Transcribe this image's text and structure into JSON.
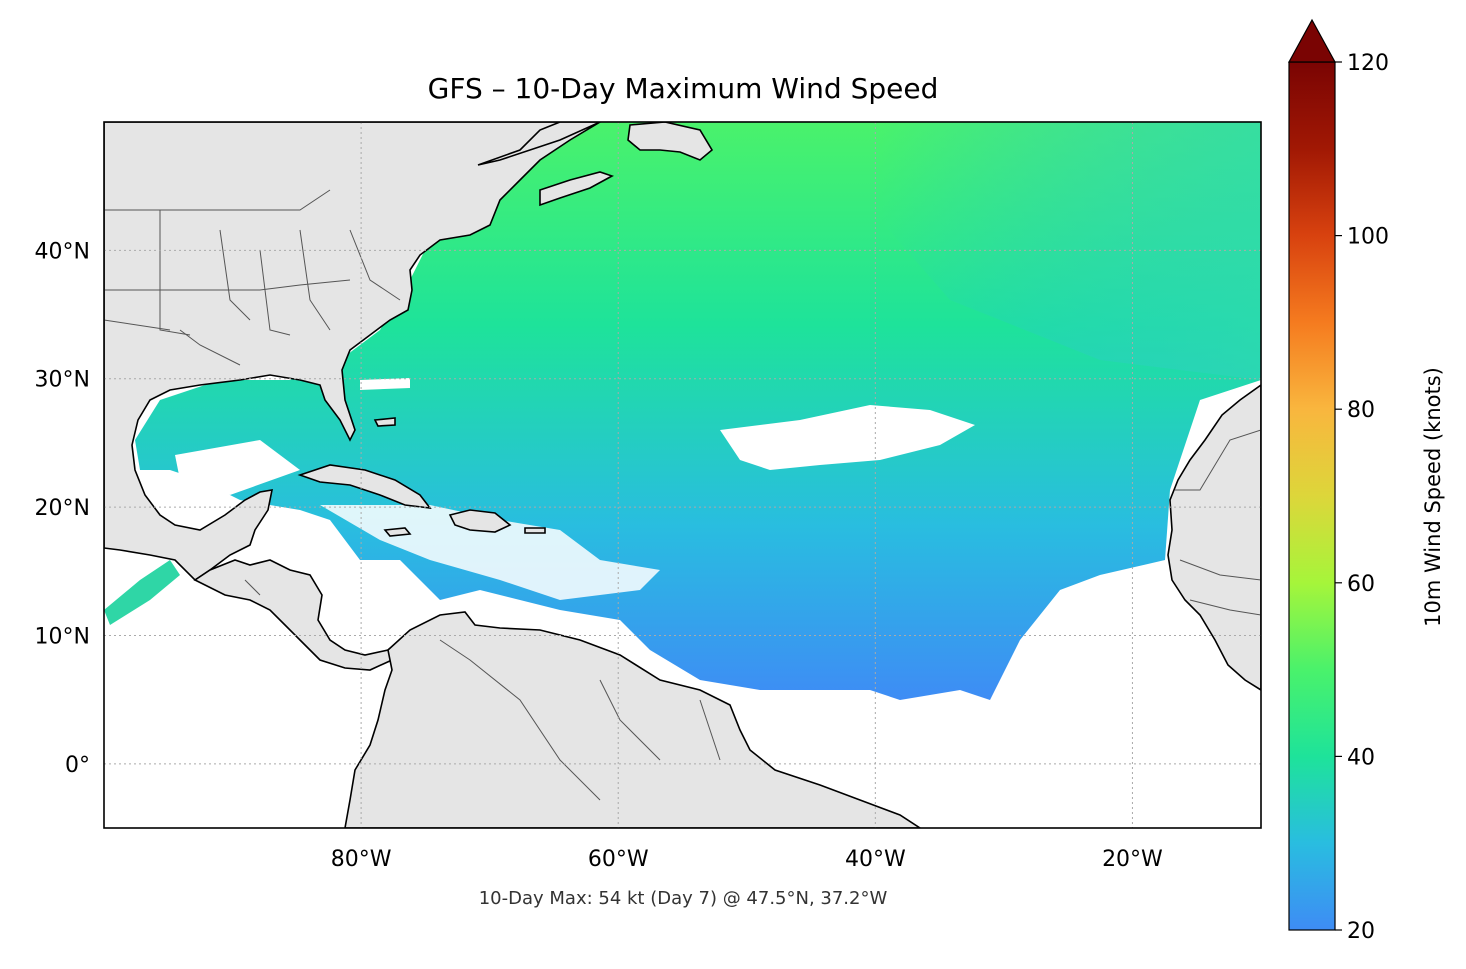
{
  "title": "GFS – 10-Day Maximum Wind Speed",
  "footnote": "10-Day Max: 54 kt (Day 7) @ 47.5°N, 37.2°W",
  "map": {
    "lon_range": [
      -100,
      -10
    ],
    "lat_range": [
      -5,
      50
    ],
    "x_ticks": [
      {
        "lon": -80,
        "label": "80°W"
      },
      {
        "lon": -60,
        "label": "60°W"
      },
      {
        "lon": -40,
        "label": "40°W"
      },
      {
        "lon": -20,
        "label": "20°W"
      }
    ],
    "y_ticks": [
      {
        "lat": 40,
        "label": "40°N"
      },
      {
        "lat": 30,
        "label": "30°N"
      },
      {
        "lat": 20,
        "label": "20°N"
      },
      {
        "lat": 10,
        "label": "10°N"
      },
      {
        "lat": 0,
        "label": "0°"
      }
    ],
    "gridlines": true,
    "land_color": "#e5e5e5",
    "ocean_color": "#ffffff"
  },
  "colorbar": {
    "label": "10m Wind Speed (knots)",
    "min": 20,
    "max": 120,
    "extend": "max",
    "ticks": [
      {
        "value": 20,
        "label": "20"
      },
      {
        "value": 40,
        "label": "40"
      },
      {
        "value": 60,
        "label": "60"
      },
      {
        "value": 80,
        "label": "80"
      },
      {
        "value": 100,
        "label": "100"
      },
      {
        "value": 120,
        "label": "120"
      }
    ],
    "colors": [
      "#3e8cf5",
      "#29bde0",
      "#1ee39a",
      "#4af26b",
      "#a6f53a",
      "#ddd63a",
      "#f9b63e",
      "#f57b1f",
      "#d8420f",
      "#a11804",
      "#7a0403"
    ]
  },
  "max_marker": {
    "value": 54,
    "units": "kt",
    "day": 7,
    "lat": 47.5,
    "lon": -37.2
  }
}
